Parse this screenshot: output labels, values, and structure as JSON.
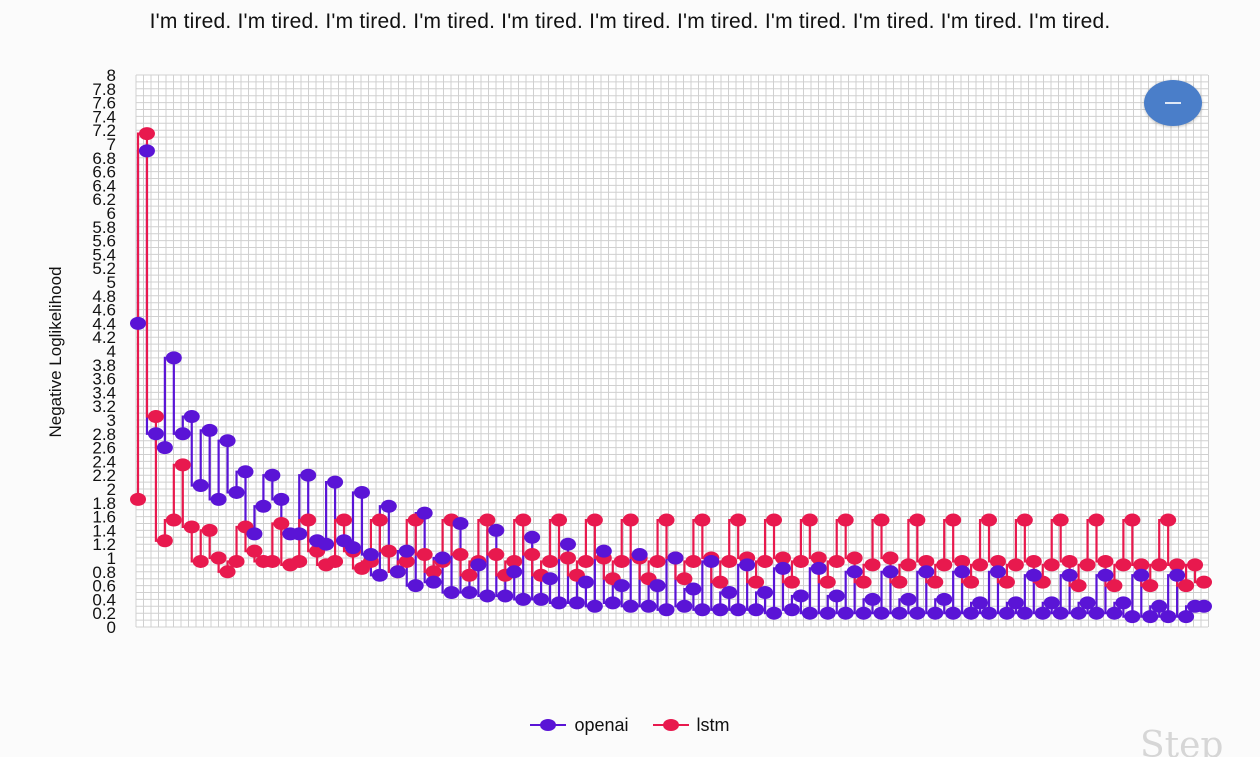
{
  "header": {
    "text": "I'm tired. I'm tired. I'm tired. I'm tired. I'm tired. I'm tired. I'm tired. I'm tired. I'm tired. I'm tired. I'm tired."
  },
  "toggle": {
    "icon": "minus-icon",
    "color": "#4a7ec9"
  },
  "watermark": {
    "text": "Step"
  },
  "chart_data": {
    "type": "line",
    "ylabel": "Negative Loglikelihood",
    "xlabel": "",
    "ylim": [
      0,
      8
    ],
    "yticks": [
      "0",
      "0.2",
      "0.4",
      "0.6",
      "0.8",
      "1",
      "1.2",
      "1.4",
      "1.6",
      "1.8",
      "2",
      "2.2",
      "2.4",
      "2.6",
      "2.8",
      "3",
      "3.2",
      "3.4",
      "3.6",
      "3.8",
      "4",
      "4.2",
      "4.4",
      "4.6",
      "4.8",
      "5",
      "5.2",
      "5.4",
      "5.6",
      "5.8",
      "6",
      "6.2",
      "6.4",
      "6.6",
      "6.8",
      "7",
      "7.2",
      "7.4",
      "7.6",
      "7.8",
      "8"
    ],
    "grid": true,
    "legend_position": "bottom",
    "x": [
      0,
      1,
      2,
      3,
      4,
      5,
      6,
      7,
      8,
      9,
      10,
      11,
      12,
      13,
      14,
      15,
      16,
      17,
      18,
      19,
      20,
      21,
      22,
      23,
      24,
      25,
      26,
      27,
      28,
      29,
      30,
      31,
      32,
      33,
      34,
      35,
      36,
      37,
      38,
      39,
      40,
      41,
      42,
      43,
      44,
      45,
      46,
      47,
      48,
      49,
      50,
      51,
      52,
      53,
      54,
      55,
      56,
      57,
      58,
      59,
      60,
      61,
      62,
      63,
      64,
      65,
      66,
      67,
      68,
      69,
      70,
      71,
      72,
      73,
      74,
      75,
      76,
      77,
      78,
      79,
      80,
      81,
      82,
      83,
      84,
      85,
      86,
      87,
      88,
      89,
      90,
      91,
      92,
      93,
      94,
      95,
      96,
      97,
      98,
      99,
      100,
      101,
      102,
      103,
      104,
      105,
      106,
      107,
      108,
      109,
      110,
      111,
      112,
      113,
      114,
      115,
      116,
      117,
      118,
      119
    ],
    "series": [
      {
        "name": "openai",
        "color": "#5a14d6",
        "values": [
          4.4,
          6.9,
          2.8,
          2.6,
          3.9,
          2.8,
          3.05,
          2.05,
          2.85,
          1.85,
          2.7,
          1.95,
          2.25,
          1.35,
          1.75,
          2.2,
          1.85,
          1.35,
          1.35,
          2.2,
          1.25,
          1.2,
          2.1,
          1.25,
          1.15,
          1.95,
          1.05,
          0.75,
          1.75,
          0.8,
          1.1,
          0.6,
          1.65,
          0.65,
          1.0,
          0.5,
          1.5,
          0.5,
          0.9,
          0.45,
          1.4,
          0.45,
          0.8,
          0.4,
          1.3,
          0.4,
          0.7,
          0.35,
          1.2,
          0.35,
          0.65,
          0.3,
          1.1,
          0.35,
          0.6,
          0.3,
          1.05,
          0.3,
          0.6,
          0.25,
          1.0,
          0.3,
          0.55,
          0.25,
          0.95,
          0.25,
          0.5,
          0.25,
          0.9,
          0.25,
          0.5,
          0.2,
          0.85,
          0.25,
          0.45,
          0.2,
          0.85,
          0.2,
          0.45,
          0.2,
          0.8,
          0.2,
          0.4,
          0.2,
          0.8,
          0.2,
          0.4,
          0.2,
          0.8,
          0.2,
          0.4,
          0.2,
          0.8,
          0.2,
          0.35,
          0.2,
          0.8,
          0.2,
          0.35,
          0.2,
          0.75,
          0.2,
          0.35,
          0.2,
          0.75,
          0.2,
          0.35,
          0.2,
          0.75,
          0.2,
          0.35,
          0.15,
          0.75,
          0.15,
          0.3,
          0.15,
          0.75,
          0.15,
          0.3,
          0.3
        ]
      },
      {
        "name": "lstm",
        "color": "#e8194e",
        "values": [
          1.85,
          7.15,
          3.05,
          1.25,
          1.55,
          2.35,
          1.45,
          0.95,
          1.4,
          1.0,
          0.8,
          0.95,
          1.45,
          1.1,
          0.95,
          0.95,
          1.5,
          0.9,
          0.95,
          1.55,
          1.1,
          0.9,
          0.95,
          1.55,
          1.1,
          0.85,
          0.95,
          1.55,
          1.1,
          0.8,
          0.95,
          1.55,
          1.05,
          0.8,
          0.95,
          1.55,
          1.05,
          0.75,
          0.95,
          1.55,
          1.05,
          0.75,
          0.95,
          1.55,
          1.05,
          0.75,
          0.95,
          1.55,
          1.0,
          0.75,
          0.95,
          1.55,
          1.0,
          0.7,
          0.95,
          1.55,
          1.0,
          0.7,
          0.95,
          1.55,
          1.0,
          0.7,
          0.95,
          1.55,
          1.0,
          0.65,
          0.95,
          1.55,
          1.0,
          0.65,
          0.95,
          1.55,
          1.0,
          0.65,
          0.95,
          1.55,
          1.0,
          0.65,
          0.95,
          1.55,
          1.0,
          0.65,
          0.9,
          1.55,
          1.0,
          0.65,
          0.9,
          1.55,
          0.95,
          0.65,
          0.9,
          1.55,
          0.95,
          0.65,
          0.9,
          1.55,
          0.95,
          0.65,
          0.9,
          1.55,
          0.95,
          0.65,
          0.9,
          1.55,
          0.95,
          0.6,
          0.9,
          1.55,
          0.95,
          0.6,
          0.9,
          1.55,
          0.9,
          0.6,
          0.9,
          1.55,
          0.9,
          0.6,
          0.9,
          0.65
        ]
      }
    ]
  }
}
